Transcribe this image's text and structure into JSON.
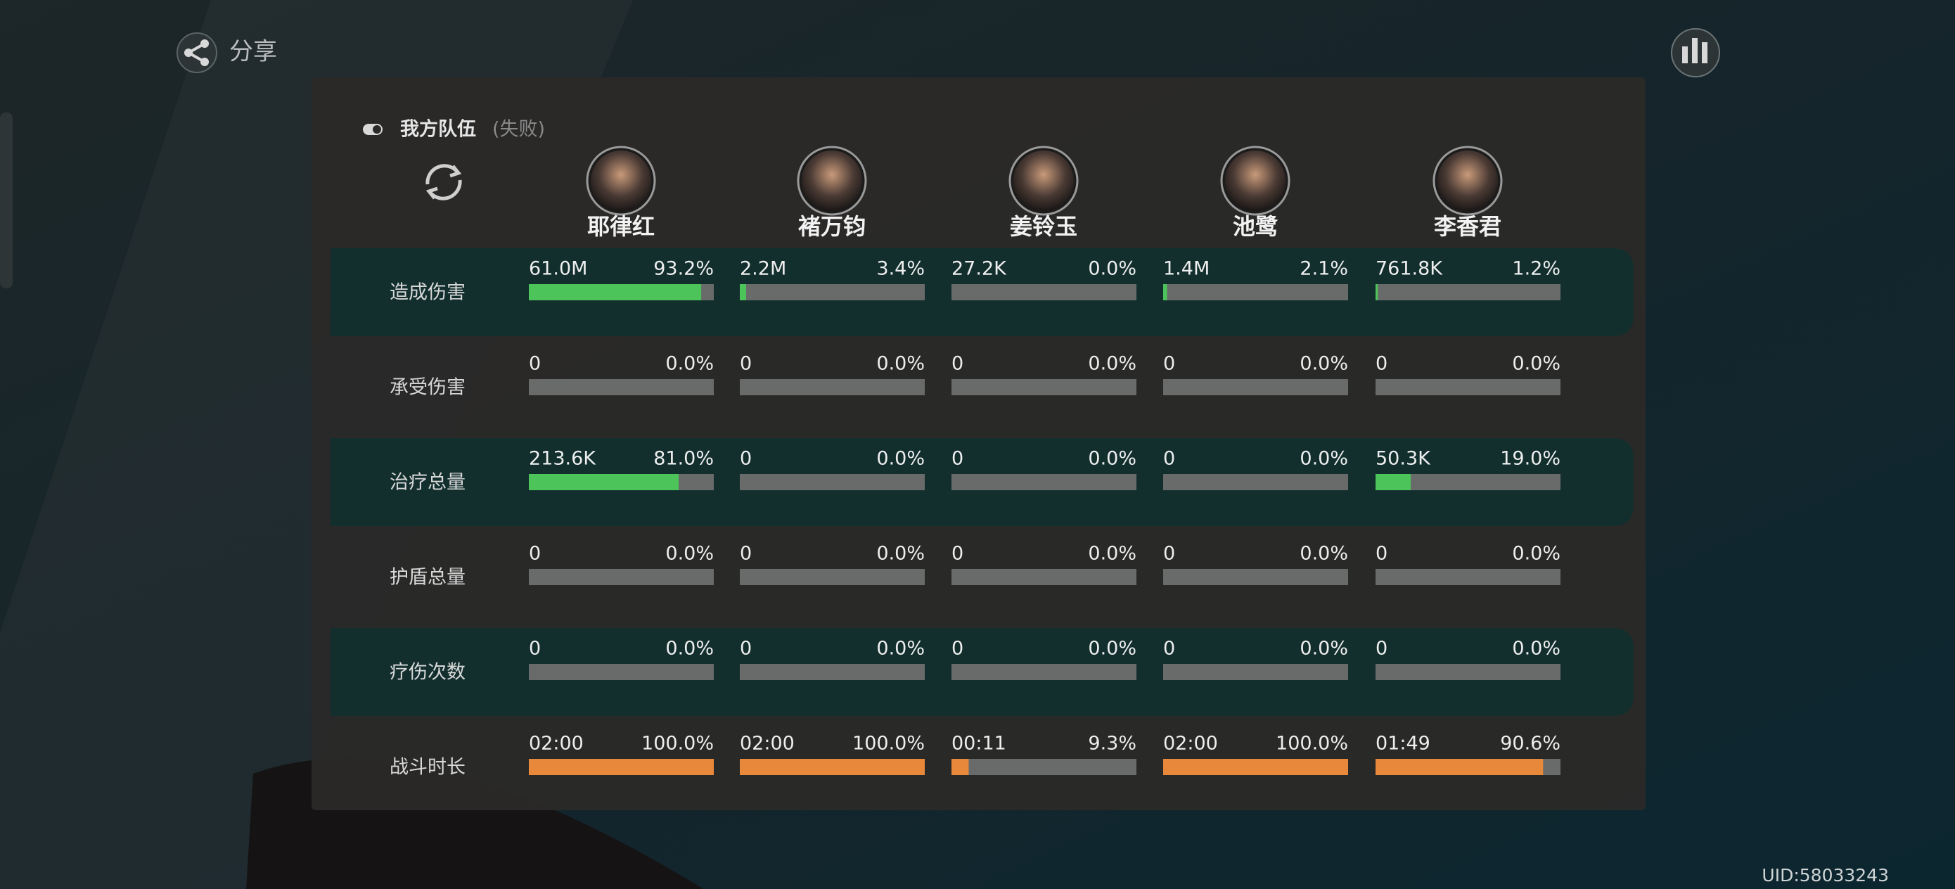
{
  "header": {
    "share": "分享",
    "uid": "UID:58033243"
  },
  "team": {
    "title": "我方队伍",
    "status": "(失败)"
  },
  "characters": [
    "耶律红",
    "褚万钧",
    "姜铃玉",
    "池鹭",
    "李香君"
  ],
  "rows": [
    {
      "label": "造成伤害",
      "bar_color": "#4cc45a",
      "cells": [
        {
          "value": "61.0M",
          "percent": 93.2,
          "percent_label": "93.2%"
        },
        {
          "value": "2.2M",
          "percent": 3.4,
          "percent_label": "3.4%"
        },
        {
          "value": "27.2K",
          "percent": 0.0,
          "percent_label": "0.0%"
        },
        {
          "value": "1.4M",
          "percent": 2.1,
          "percent_label": "2.1%"
        },
        {
          "value": "761.8K",
          "percent": 1.2,
          "percent_label": "1.2%"
        }
      ]
    },
    {
      "label": "承受伤害",
      "bar_color": "#4cc45a",
      "cells": [
        {
          "value": "0",
          "percent": 0.0,
          "percent_label": "0.0%"
        },
        {
          "value": "0",
          "percent": 0.0,
          "percent_label": "0.0%"
        },
        {
          "value": "0",
          "percent": 0.0,
          "percent_label": "0.0%"
        },
        {
          "value": "0",
          "percent": 0.0,
          "percent_label": "0.0%"
        },
        {
          "value": "0",
          "percent": 0.0,
          "percent_label": "0.0%"
        }
      ]
    },
    {
      "label": "治疗总量",
      "bar_color": "#4cc45a",
      "cells": [
        {
          "value": "213.6K",
          "percent": 81.0,
          "percent_label": "81.0%"
        },
        {
          "value": "0",
          "percent": 0.0,
          "percent_label": "0.0%"
        },
        {
          "value": "0",
          "percent": 0.0,
          "percent_label": "0.0%"
        },
        {
          "value": "0",
          "percent": 0.0,
          "percent_label": "0.0%"
        },
        {
          "value": "50.3K",
          "percent": 19.0,
          "percent_label": "19.0%"
        }
      ]
    },
    {
      "label": "护盾总量",
      "bar_color": "#4cc45a",
      "cells": [
        {
          "value": "0",
          "percent": 0.0,
          "percent_label": "0.0%"
        },
        {
          "value": "0",
          "percent": 0.0,
          "percent_label": "0.0%"
        },
        {
          "value": "0",
          "percent": 0.0,
          "percent_label": "0.0%"
        },
        {
          "value": "0",
          "percent": 0.0,
          "percent_label": "0.0%"
        },
        {
          "value": "0",
          "percent": 0.0,
          "percent_label": "0.0%"
        }
      ]
    },
    {
      "label": "疗伤次数",
      "bar_color": "#4cc45a",
      "cells": [
        {
          "value": "0",
          "percent": 0.0,
          "percent_label": "0.0%"
        },
        {
          "value": "0",
          "percent": 0.0,
          "percent_label": "0.0%"
        },
        {
          "value": "0",
          "percent": 0.0,
          "percent_label": "0.0%"
        },
        {
          "value": "0",
          "percent": 0.0,
          "percent_label": "0.0%"
        },
        {
          "value": "0",
          "percent": 0.0,
          "percent_label": "0.0%"
        }
      ]
    },
    {
      "label": "战斗时长",
      "bar_color": "#e8883a",
      "cells": [
        {
          "value": "02:00",
          "percent": 100.0,
          "percent_label": "100.0%"
        },
        {
          "value": "02:00",
          "percent": 100.0,
          "percent_label": "100.0%"
        },
        {
          "value": "00:11",
          "percent": 9.3,
          "percent_label": "9.3%"
        },
        {
          "value": "02:00",
          "percent": 100.0,
          "percent_label": "100.0%"
        },
        {
          "value": "01:49",
          "percent": 90.6,
          "percent_label": "90.6%"
        }
      ]
    }
  ]
}
